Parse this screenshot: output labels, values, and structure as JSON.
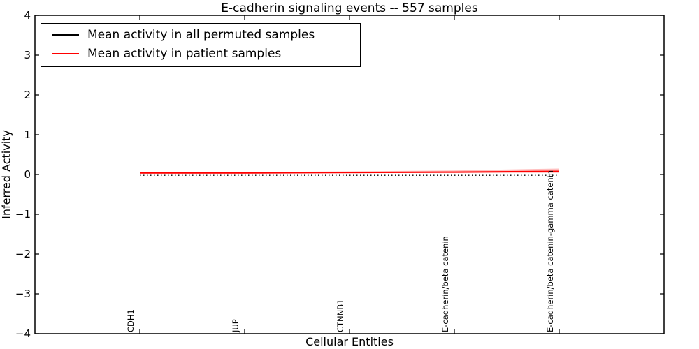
{
  "chart_data": {
    "type": "line",
    "title": "E-cadherin signaling events -- 557 samples",
    "xlabel": "Cellular Entities",
    "ylabel": "Inferred Activity",
    "categories": [
      "CDH1",
      "JUP",
      "CTNNB1",
      "E-cadherin/beta catenin",
      "E-cadherin/beta catenin-gamma catenin"
    ],
    "x": [
      1,
      2,
      3,
      4,
      5
    ],
    "xlim": [
      0,
      6
    ],
    "ylim": [
      -4,
      4
    ],
    "yticks": [
      4,
      3,
      2,
      1,
      0,
      -1,
      -2,
      -3,
      -4
    ],
    "grid": false,
    "legend_position": "upper left",
    "series": [
      {
        "name": "Mean activity in all permuted samples",
        "color": "#000000",
        "linestyle": "dotted",
        "width": 1.4,
        "values": [
          -0.02,
          -0.02,
          -0.02,
          -0.02,
          -0.02
        ]
      },
      {
        "name": "Mean activity in patient samples",
        "color": "#ff0000",
        "linestyle": "solid",
        "width": 2,
        "values": [
          0.04,
          0.04,
          0.05,
          0.06,
          0.08
        ]
      }
    ],
    "band": {
      "series": "Mean activity in patient samples",
      "upper": [
        0.06,
        0.06,
        0.08,
        0.1,
        0.15
      ],
      "lower": [
        0.02,
        0.02,
        0.03,
        0.04,
        0.04
      ],
      "color": "#ff0000",
      "opacity": 0.25
    }
  }
}
